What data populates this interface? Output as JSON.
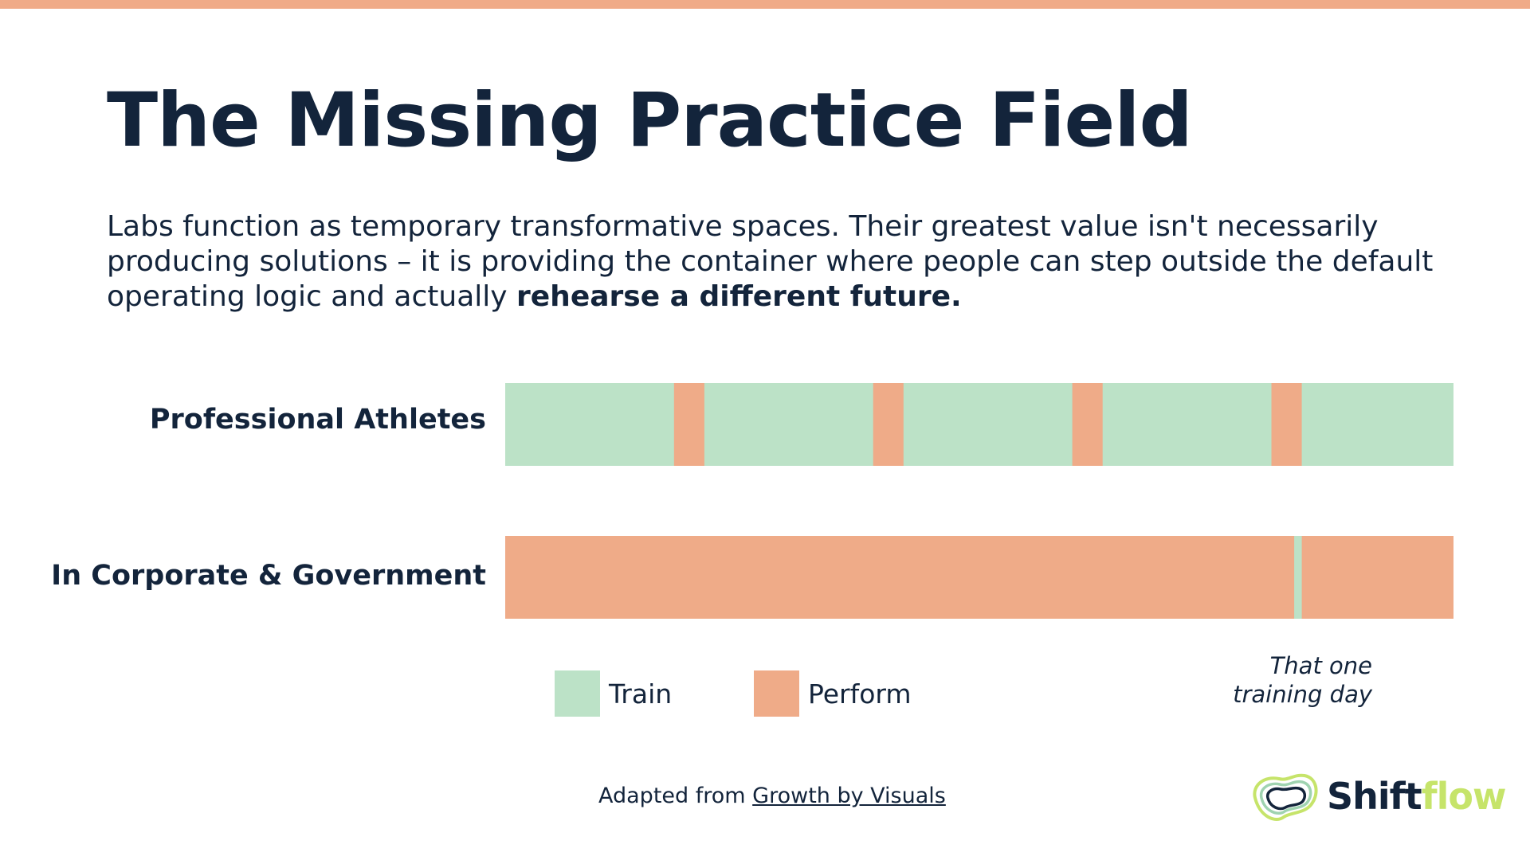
{
  "colors": {
    "accent_stripe": "#f0ab88",
    "train": "#bce2c7",
    "perform": "#efab88",
    "text_dark": "#13243b",
    "logo_flow": "#c6e46a"
  },
  "slide": {
    "title": "The Missing Practice Field",
    "body": {
      "text": "Labs function as temporary transformative spaces. Their greatest value isn't necessarily producing solutions – it is providing the container where people can step outside the default operating logic and actually ",
      "emphasis": "rehearse a different future."
    },
    "footer": {
      "prefix": "Adapted from ",
      "link_text": "Growth by Visuals"
    },
    "logo": {
      "part1": "Shift",
      "part2": "flow",
      "icon": "shiftflow-logo-icon"
    }
  },
  "chart_data": {
    "type": "bar",
    "orientation": "horizontal-segmented",
    "rows": [
      {
        "label": "Professional Athletes",
        "segments": [
          {
            "kind": "Train",
            "share": 0.178
          },
          {
            "kind": "Perform",
            "share": 0.032
          },
          {
            "kind": "Train",
            "share": 0.178
          },
          {
            "kind": "Perform",
            "share": 0.032
          },
          {
            "kind": "Train",
            "share": 0.178
          },
          {
            "kind": "Perform",
            "share": 0.032
          },
          {
            "kind": "Train",
            "share": 0.178
          },
          {
            "kind": "Perform",
            "share": 0.032
          },
          {
            "kind": "Train",
            "share": 0.16
          }
        ]
      },
      {
        "label": "In Corporate & Government",
        "segments": [
          {
            "kind": "Perform",
            "share": 0.832
          },
          {
            "kind": "Train",
            "share": 0.008
          },
          {
            "kind": "Perform",
            "share": 0.16
          }
        ]
      }
    ],
    "legend": [
      {
        "name": "Train",
        "color": "#bce2c7"
      },
      {
        "name": "Perform",
        "color": "#efab88"
      }
    ],
    "annotation": {
      "line1": "That one",
      "line2": "training day"
    }
  }
}
